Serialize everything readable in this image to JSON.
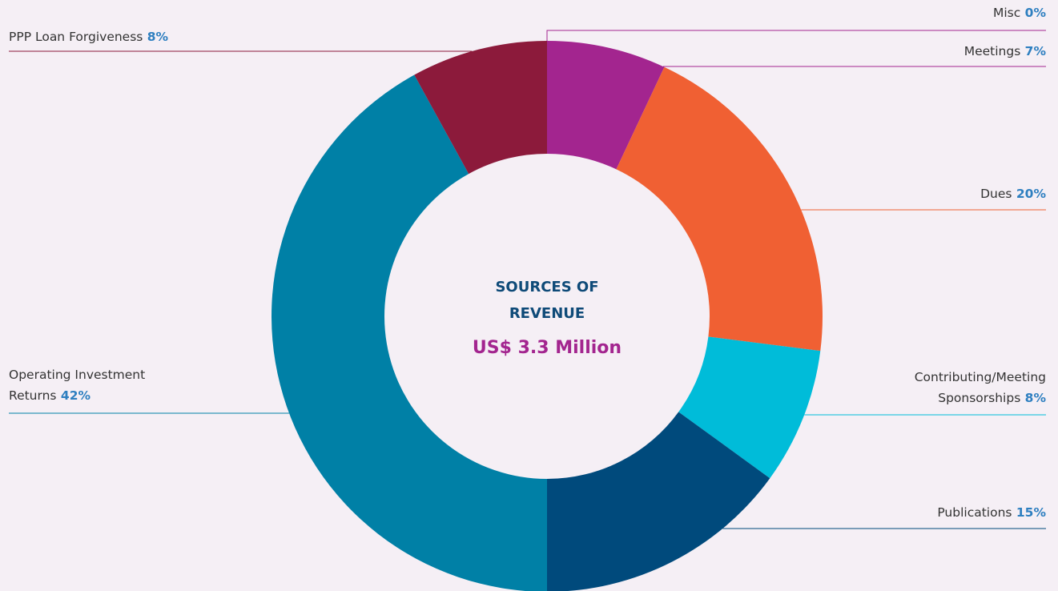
{
  "chart_data": {
    "type": "pie",
    "variant": "donut",
    "title": "SOURCES OF REVENUE",
    "total": "US$ 3.3 Million",
    "unit": "%",
    "slices": [
      {
        "label": "Misc",
        "value": 0,
        "value_text": "0%",
        "color": "#a3258f"
      },
      {
        "label": "Meetings",
        "value": 7,
        "value_text": "7%",
        "color": "#a3258f"
      },
      {
        "label": "Dues",
        "value": 20,
        "value_text": "20%",
        "color": "#f06033"
      },
      {
        "label": "Contributing/Meeting Sponsorships",
        "value": 8,
        "value_text": "8%",
        "color": "#00bcd9"
      },
      {
        "label": "Publications",
        "value": 15,
        "value_text": "15%",
        "color": "#004a7c"
      },
      {
        "label": "Operating Investment Returns",
        "value": 42,
        "value_text": "42%",
        "color": "#0080a6"
      },
      {
        "label": "PPP Loan Forgiveness",
        "value": 8,
        "value_text": "8%",
        "color": "#8c1a3b"
      }
    ]
  }
}
